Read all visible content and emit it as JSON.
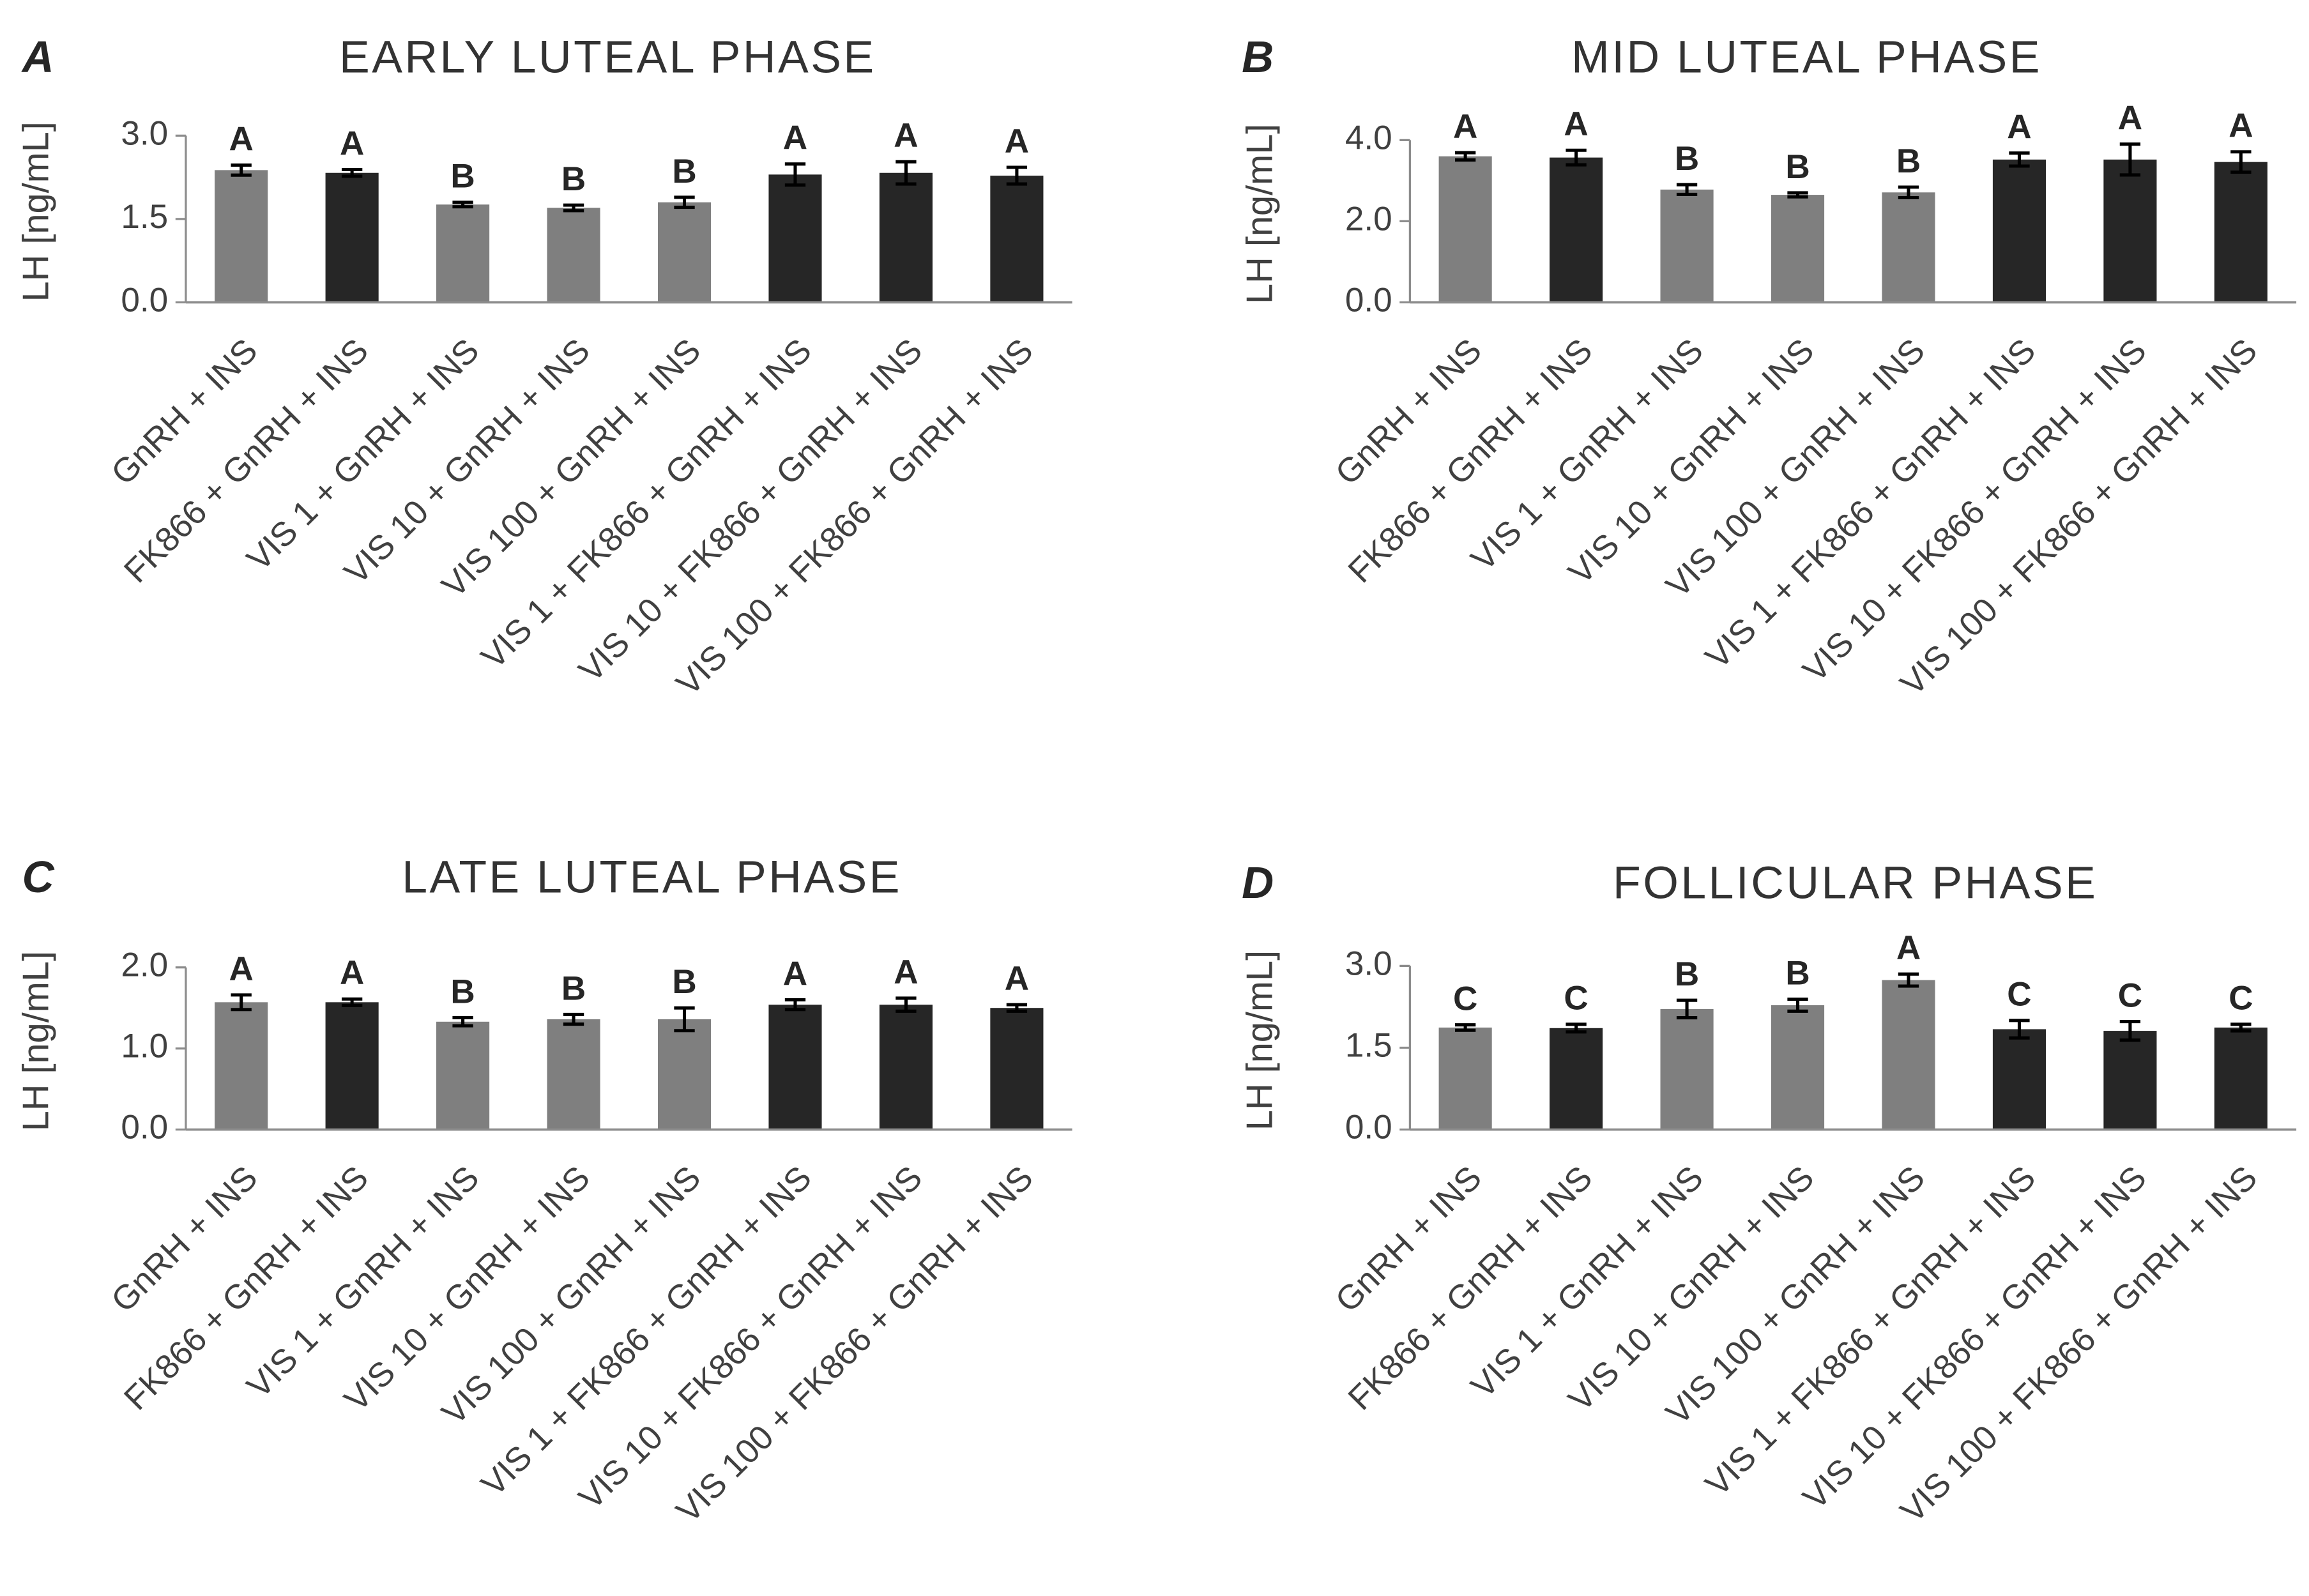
{
  "categories": [
    "GnRH + INS",
    "FK866 + GnRH + INS",
    "VIS 1 + GnRH + INS",
    "VIS 10 + GnRH + INS",
    "VIS 100 + GnRH + INS",
    "VIS 1 + FK866 + GnRH + INS",
    "VIS 10 + FK866 + GnRH + INS",
    "VIS 100 + FK866 + GnRH + INS"
  ],
  "colors": {
    "gray": "#7f7f7f",
    "dark": "#262626",
    "axis": "#8c8c8c",
    "text": "#404040"
  },
  "bar_colors": [
    "gray",
    "dark",
    "gray",
    "gray",
    "gray",
    "dark",
    "dark",
    "dark"
  ],
  "chart_data": [
    {
      "panel_label": "A",
      "title": "EARLY LUTEAL PHASE",
      "type": "bar",
      "ylabel": "LH [ng/mL]",
      "ylim": [
        0,
        3.0
      ],
      "yticks": [
        0.0,
        1.5,
        3.0
      ],
      "ytick_labels": [
        "0.0",
        "1.5",
        "3.0"
      ],
      "values": [
        2.38,
        2.33,
        1.76,
        1.7,
        1.8,
        2.3,
        2.33,
        2.28
      ],
      "errors": [
        0.09,
        0.06,
        0.04,
        0.05,
        0.09,
        0.19,
        0.2,
        0.15
      ],
      "letters": [
        "A",
        "A",
        "B",
        "B",
        "B",
        "A",
        "A",
        "A"
      ]
    },
    {
      "panel_label": "B",
      "title": "MID LUTEAL PHASE",
      "type": "bar",
      "ylabel": "LH [ng/mL]",
      "ylim": [
        0,
        4.0
      ],
      "yticks": [
        0.0,
        2.0,
        4.0
      ],
      "ytick_labels": [
        "0.0",
        "2.0",
        "4.0"
      ],
      "values": [
        3.6,
        3.57,
        2.78,
        2.65,
        2.71,
        3.52,
        3.52,
        3.46
      ],
      "errors": [
        0.09,
        0.18,
        0.12,
        0.05,
        0.13,
        0.16,
        0.38,
        0.25
      ],
      "letters": [
        "A",
        "A",
        "B",
        "B",
        "B",
        "A",
        "A",
        "A"
      ]
    },
    {
      "panel_label": "C",
      "title": "LATE LUTEAL PHASE",
      "type": "bar",
      "ylabel": "LH [ng/mL]",
      "ylim": [
        0,
        2.0
      ],
      "yticks": [
        0.0,
        1.0,
        2.0
      ],
      "ytick_labels": [
        "0.0",
        "1.0",
        "2.0"
      ],
      "values": [
        1.57,
        1.57,
        1.33,
        1.36,
        1.36,
        1.54,
        1.54,
        1.5
      ],
      "errors": [
        0.09,
        0.04,
        0.05,
        0.06,
        0.14,
        0.06,
        0.08,
        0.04
      ],
      "letters": [
        "A",
        "A",
        "B",
        "B",
        "B",
        "A",
        "A",
        "A"
      ]
    },
    {
      "panel_label": "D",
      "title": "FOLLICULAR PHASE",
      "type": "bar",
      "ylabel": "LH [ng/mL]",
      "ylim": [
        0,
        3.0
      ],
      "yticks": [
        0.0,
        1.5,
        3.0
      ],
      "ytick_labels": [
        "0.0",
        "1.5",
        "3.0"
      ],
      "values": [
        1.87,
        1.86,
        2.21,
        2.28,
        2.74,
        1.84,
        1.81,
        1.87
      ],
      "errors": [
        0.05,
        0.07,
        0.16,
        0.11,
        0.11,
        0.16,
        0.17,
        0.06
      ],
      "letters": [
        "C",
        "C",
        "B",
        "B",
        "A",
        "C",
        "C",
        "C"
      ]
    }
  ]
}
